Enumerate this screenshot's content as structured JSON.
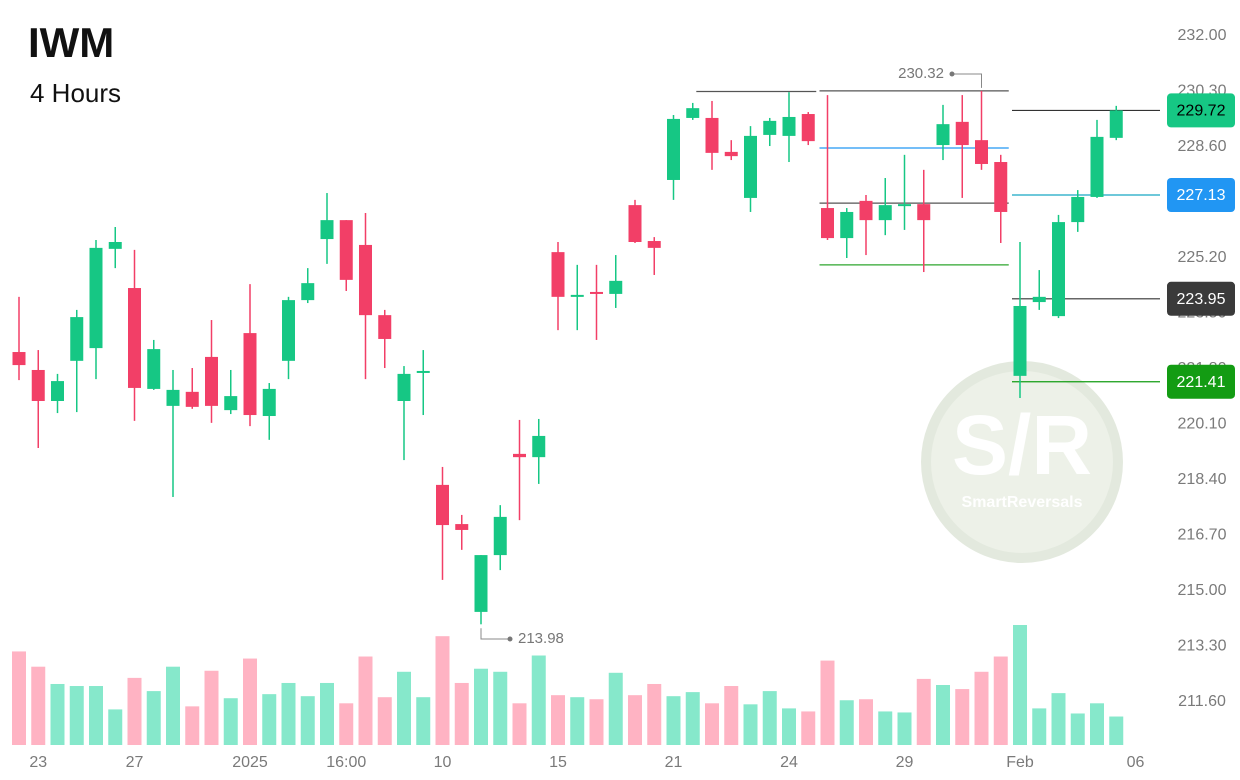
{
  "chart_data": {
    "type": "candlestick",
    "title": "IWM",
    "subtitle": "4 Hours",
    "watermark": {
      "mark": "S/R",
      "name": "SmartReversals"
    },
    "up_color": "#16c784",
    "down_color": "#f23f67",
    "volume_up_color": "#86e8cb",
    "volume_down_color": "#ffb3c3",
    "ylim": [
      211.6,
      232
    ],
    "yticks": [
      {
        "value": 211.6,
        "label": "211.60"
      },
      {
        "value": 213.3,
        "label": "213.30"
      },
      {
        "value": 215,
        "label": "215.00"
      },
      {
        "value": 216.7,
        "label": "216.70"
      },
      {
        "value": 218.4,
        "label": "218.40"
      },
      {
        "value": 220.1,
        "label": "220.10"
      },
      {
        "value": 221.8,
        "label": "221.80"
      },
      {
        "value": 223.5,
        "label": "223.50"
      },
      {
        "value": 225.2,
        "label": "225.20"
      },
      {
        "value": 226.9,
        "label": "226.90"
      },
      {
        "value": 228.6,
        "label": "228.60"
      },
      {
        "value": 230.3,
        "label": "230.30"
      },
      {
        "value": 232,
        "label": "232.00"
      }
    ],
    "xticks": [
      {
        "value": 1,
        "label": "23"
      },
      {
        "value": 6,
        "label": "27"
      },
      {
        "value": 12,
        "label": "2025"
      },
      {
        "value": 17,
        "label": "16:00"
      },
      {
        "value": 22,
        "label": "10"
      },
      {
        "value": 28,
        "label": "15"
      },
      {
        "value": 34,
        "label": "21"
      },
      {
        "value": 40,
        "label": "24"
      },
      {
        "value": 46,
        "label": "29"
      },
      {
        "value": 52,
        "label": "Feb"
      },
      {
        "value": 58,
        "label": "06"
      }
    ],
    "open": [
      222.32,
      221.77,
      220.82,
      222.05,
      222.44,
      225.48,
      224.28,
      221.19,
      220.67,
      221.1,
      222.17,
      220.54,
      222.9,
      220.36,
      222.05,
      223.91,
      225.78,
      226.36,
      225.6,
      223.45,
      220.82,
      221.68,
      218.25,
      217.05,
      214.36,
      216.1,
      219.2,
      219.1,
      225.38,
      224.04,
      224.16,
      224.1,
      226.82,
      225.72,
      227.59,
      229.49,
      229.49,
      228.45,
      227.04,
      228.97,
      228.94,
      229.61,
      226.73,
      225.81,
      226.95,
      226.36,
      226.79,
      226.85,
      228.66,
      229.37,
      228.81,
      228.14,
      221.59,
      223.85,
      223.42,
      226.3,
      227.07,
      228.88
    ],
    "high": [
      224.01,
      222.38,
      221.65,
      223.61,
      225.75,
      226.15,
      225.45,
      222.69,
      221.77,
      221.83,
      223.3,
      221.77,
      224.4,
      221.37,
      224.01,
      224.89,
      227.19,
      226.36,
      226.58,
      223.61,
      221.89,
      222.38,
      218.8,
      217.33,
      216.1,
      217.63,
      220.24,
      220.27,
      225.69,
      224.99,
      224.99,
      225.29,
      226.98,
      225.84,
      229.58,
      229.95,
      230.01,
      228.81,
      229.24,
      229.49,
      230.28,
      229.67,
      230.19,
      226.73,
      227.13,
      227.65,
      228.36,
      227.9,
      229.89,
      230.19,
      230.32,
      228.36,
      225.69,
      224.83,
      226.52,
      227.28,
      229.43,
      229.86
    ],
    "low": [
      221.46,
      219.38,
      220.45,
      220.48,
      221.49,
      224.89,
      220.21,
      221.16,
      217.88,
      220.58,
      220.15,
      220.42,
      220.05,
      219.63,
      221.49,
      223.82,
      225.02,
      224.19,
      221.49,
      221.83,
      219.01,
      220.39,
      215.34,
      216.26,
      213.98,
      215.64,
      217.17,
      218.28,
      222.99,
      222.99,
      222.69,
      223.67,
      225.66,
      224.68,
      226.98,
      229.43,
      227.9,
      228.2,
      226.61,
      228.63,
      228.14,
      228.66,
      225.75,
      225.2,
      225.29,
      225.9,
      226.06,
      224.77,
      228.2,
      227.04,
      227.9,
      225.66,
      220.91,
      223.61,
      223.36,
      226.0,
      227.04,
      228.81
    ],
    "close": [
      221.92,
      220.82,
      221.43,
      223.39,
      225.51,
      225.69,
      221.22,
      222.41,
      221.16,
      220.64,
      220.67,
      220.97,
      220.39,
      221.19,
      223.91,
      224.43,
      226.36,
      224.53,
      223.45,
      222.72,
      221.65,
      221.74,
      217.02,
      216.87,
      216.1,
      217.27,
      219.1,
      219.75,
      224.01,
      224.07,
      224.13,
      224.5,
      225.69,
      225.51,
      229.46,
      229.79,
      228.42,
      228.32,
      228.94,
      229.4,
      229.52,
      228.78,
      225.81,
      226.61,
      226.36,
      226.82,
      226.85,
      226.36,
      229.3,
      228.66,
      228.08,
      226.61,
      223.73,
      224.01,
      226.3,
      227.07,
      228.91,
      229.72
    ],
    "volume": [
      92,
      77,
      60,
      58,
      58,
      35,
      66,
      53,
      77,
      38,
      73,
      46,
      85,
      50,
      61,
      48,
      61,
      41,
      87,
      47,
      72,
      47,
      107,
      61,
      75,
      72,
      41,
      88,
      49,
      47,
      45,
      71,
      49,
      60,
      48,
      52,
      41,
      58,
      40,
      53,
      36,
      33,
      83,
      44,
      45,
      33,
      32,
      65,
      59,
      55,
      72,
      87,
      118,
      36,
      51,
      31,
      41,
      28
    ],
    "levels": [
      {
        "value": 230.3,
        "color": "#555555"
      },
      {
        "value": 230.32,
        "color": "#555555"
      },
      {
        "value": 228.57,
        "color": "#2196f3"
      },
      {
        "value": 226.88,
        "color": "#555555"
      },
      {
        "value": 224.99,
        "color": "#2ea52e"
      },
      {
        "value": 229.72,
        "color": "#333333"
      },
      {
        "value": 227.13,
        "color": "#17a8c4"
      },
      {
        "value": 223.95,
        "color": "#333333"
      },
      {
        "value": 221.41,
        "color": "#139c13"
      }
    ],
    "price_tags": [
      {
        "value": 229.72,
        "color": "#16c784",
        "text_color": "#000000"
      },
      {
        "value": 227.13,
        "color": "#2196f3",
        "text_color": "#ffffff"
      },
      {
        "value": 223.95,
        "color": "#3a3a3a",
        "text_color": "#ffffff"
      },
      {
        "value": 221.41,
        "color": "#139c13",
        "text_color": "#ffffff"
      }
    ],
    "annotations": [
      {
        "value": 230.32,
        "index": 50
      },
      {
        "value": 213.98,
        "index": 24
      }
    ]
  }
}
